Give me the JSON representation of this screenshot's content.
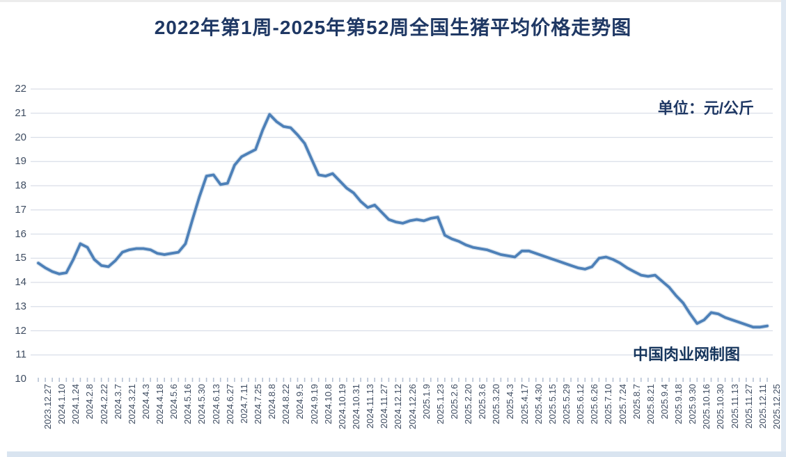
{
  "title": "2022年第1周-2025年第52周全国生猪平均价格走势图",
  "unit_label": "单位：元/公斤",
  "watermark": "中国肉业网制图",
  "colors": {
    "title_text": "#1f3864",
    "line": "#4d80b8",
    "line_halo": "#b8cce0",
    "gridline": "#d9dee8",
    "axis_text": "#3e4c61",
    "tick": "#b6c2d4",
    "page_margin": "#d9e4f0"
  },
  "chart_data": {
    "type": "line",
    "title": "2022年第1周-2025年第52周全国生猪平均价格走势图",
    "xlabel": "",
    "ylabel": "元/公斤",
    "ylim": [
      10,
      22
    ],
    "ytick_step": 1,
    "grid": true,
    "legend_position": "none",
    "series_name": "全国生猪平均价格",
    "categories": [
      "2023.12.27",
      "2024.1.10",
      "2024.1.24",
      "2024.2.8",
      "2024.2.22",
      "2024.3.7",
      "2024.3.21",
      "2024.4.3",
      "2024.4.18",
      "2024.5.6",
      "2024.5.16",
      "2024.5.30",
      "2024.6.13",
      "2024.6.27",
      "2024.7.11",
      "2024.7.25",
      "2024.8.8",
      "2024.8.22",
      "2024.9.5",
      "2024.9.19",
      "2024.10.8",
      "2024.10.19",
      "2024.10.31",
      "2024.11.13",
      "2024.11.27",
      "2024.12.12",
      "2024.12.26",
      "2025.1.9",
      "2025.1.23",
      "2025.2.6",
      "2025.2.20",
      "2025.3.6",
      "2025.3.20",
      "2025.4.3",
      "2025.4.17",
      "2025.4.30",
      "2025.5.15",
      "2025.5.29",
      "2025.6.12",
      "2025.6.26",
      "2025.7.10",
      "2025.7.24",
      "2025.8.7",
      "2025.8.21",
      "2025.9.4",
      "2025.9.18",
      "2025.9.30",
      "2025.10.16",
      "2025.10.30",
      "2025.11.13",
      "2025.11.27",
      "2025.12.11",
      "2025.12.25"
    ],
    "values": [
      14.8,
      14.45,
      14.4,
      15.6,
      14.95,
      14.65,
      15.25,
      15.4,
      15.35,
      15.15,
      15.25,
      16.6,
      18.4,
      18.05,
      18.85,
      19.35,
      20.3,
      20.65,
      20.4,
      19.75,
      18.45,
      18.5,
      17.9,
      17.35,
      17.2,
      16.6,
      16.45,
      16.6,
      16.65,
      15.95,
      15.7,
      15.45,
      15.35,
      15.15,
      15.05,
      15.3,
      15.1,
      14.9,
      14.7,
      14.55,
      15.0,
      14.95,
      14.6,
      14.3,
      14.3,
      13.8,
      13.15,
      12.3,
      12.75,
      12.55,
      12.35,
      12.15,
      12.2
    ],
    "midpoint_values": [
      14.6,
      14.35,
      14.95,
      15.45,
      14.7,
      14.9,
      15.35,
      15.4,
      15.2,
      15.2,
      15.6,
      17.55,
      18.45,
      18.1,
      19.2,
      19.5,
      20.95,
      20.45,
      20.1,
      19.1,
      18.4,
      18.2,
      17.7,
      17.1,
      16.9,
      16.5,
      16.55,
      16.55,
      16.7,
      15.8,
      15.55,
      15.4,
      15.25,
      15.1,
      15.3,
      15.2,
      15.0,
      14.8,
      14.6,
      14.65,
      15.05,
      14.8,
      14.45,
      14.25,
      14.05,
      13.45,
      12.7,
      12.45,
      12.7,
      12.45,
      12.25,
      12.15
    ]
  }
}
